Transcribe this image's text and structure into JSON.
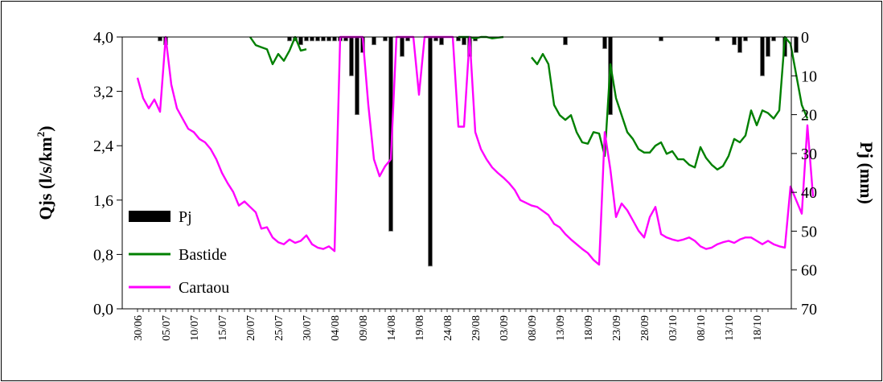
{
  "chart_data": {
    "type": "bar+line",
    "left_axis": {
      "label_main": "Qjs (l/s/km",
      "label_sup": "2",
      "label_end": ")",
      "ylim": [
        0,
        4
      ],
      "ticks": [
        "0,0",
        "0,8",
        "1,6",
        "2,4",
        "3,2",
        "4,0"
      ],
      "tick_values": [
        0,
        0.8,
        1.6,
        2.4,
        3.2,
        4.0
      ]
    },
    "right_axis": {
      "label": "Pj (mm)",
      "ylim": [
        0,
        70
      ],
      "inverted": true,
      "ticks": [
        "0",
        "10",
        "20",
        "30",
        "40",
        "50",
        "60",
        "70"
      ],
      "tick_values": [
        0,
        10,
        20,
        30,
        40,
        50,
        60,
        70
      ]
    },
    "x_axis": {
      "days": 112,
      "tick_labels": [
        "30/06",
        "05/07",
        "10/07",
        "15/07",
        "20/07",
        "25/07",
        "30/07",
        "04/08",
        "09/08",
        "14/08",
        "19/08",
        "24/08",
        "29/08",
        "03/09",
        "08/09",
        "13/09",
        "18/09",
        "23/09",
        "28/09",
        "03/10",
        "08/10",
        "13/10",
        "18/10"
      ]
    },
    "legend": {
      "position": "left-bottom"
    },
    "series": [
      {
        "name": "Pj",
        "type": "bar",
        "axis": "right",
        "color": "#000000",
        "points": [
          [
            4,
            1
          ],
          [
            5,
            2
          ],
          [
            27,
            1
          ],
          [
            28,
            1
          ],
          [
            29,
            2
          ],
          [
            30,
            1
          ],
          [
            31,
            1
          ],
          [
            32,
            1
          ],
          [
            33,
            1
          ],
          [
            34,
            1
          ],
          [
            35,
            1
          ],
          [
            36,
            1
          ],
          [
            37,
            1
          ],
          [
            38,
            10
          ],
          [
            39,
            20
          ],
          [
            40,
            4
          ],
          [
            42,
            2
          ],
          [
            44,
            1
          ],
          [
            45,
            50
          ],
          [
            47,
            5
          ],
          [
            48,
            1
          ],
          [
            52,
            59
          ],
          [
            53,
            1
          ],
          [
            54,
            2
          ],
          [
            57,
            1
          ],
          [
            58,
            2
          ],
          [
            59,
            5
          ],
          [
            60,
            1
          ],
          [
            76,
            2
          ],
          [
            83,
            3
          ],
          [
            84,
            20
          ],
          [
            93,
            1
          ],
          [
            103,
            1
          ],
          [
            106,
            2
          ],
          [
            107,
            4
          ],
          [
            108,
            1
          ],
          [
            111,
            10
          ],
          [
            112,
            5
          ],
          [
            113,
            1
          ],
          [
            115,
            5
          ],
          [
            117,
            4
          ]
        ]
      },
      {
        "name": "Bastide",
        "type": "line",
        "axis": "left",
        "color": "#008000",
        "points": [
          [
            20,
            4.0
          ],
          [
            21,
            3.88
          ],
          [
            22,
            3.85
          ],
          [
            23,
            3.82
          ],
          [
            24,
            3.6
          ],
          [
            25,
            3.75
          ],
          [
            26,
            3.65
          ],
          [
            27,
            3.8
          ],
          [
            28,
            4.0
          ],
          [
            29,
            3.8
          ],
          [
            30,
            3.82
          ],
          [
            37,
            4.0
          ],
          [
            48,
            4.0
          ],
          [
            55,
            4.0
          ],
          [
            57,
            4.0
          ],
          [
            58,
            4.05
          ],
          [
            59,
            4.0
          ],
          [
            60,
            3.98
          ],
          [
            61,
            4.02
          ],
          [
            62,
            4.0
          ],
          [
            63,
            3.98
          ],
          [
            64,
            3.99
          ],
          [
            65,
            4.0
          ],
          [
            68,
            4.0
          ],
          [
            70,
            3.7
          ],
          [
            71,
            3.6
          ],
          [
            72,
            3.75
          ],
          [
            73,
            3.6
          ],
          [
            74,
            3.0
          ],
          [
            75,
            2.85
          ],
          [
            76,
            2.78
          ],
          [
            77,
            2.85
          ],
          [
            78,
            2.6
          ],
          [
            79,
            2.45
          ],
          [
            80,
            2.43
          ],
          [
            81,
            2.6
          ],
          [
            82,
            2.58
          ],
          [
            83,
            2.25
          ],
          [
            84,
            3.6
          ],
          [
            85,
            3.1
          ],
          [
            86,
            2.85
          ],
          [
            87,
            2.6
          ],
          [
            88,
            2.5
          ],
          [
            89,
            2.35
          ],
          [
            90,
            2.3
          ],
          [
            91,
            2.3
          ],
          [
            92,
            2.4
          ],
          [
            93,
            2.45
          ],
          [
            94,
            2.28
          ],
          [
            95,
            2.32
          ],
          [
            96,
            2.2
          ],
          [
            97,
            2.2
          ],
          [
            98,
            2.12
          ],
          [
            99,
            2.08
          ],
          [
            100,
            2.38
          ],
          [
            101,
            2.22
          ],
          [
            102,
            2.12
          ],
          [
            103,
            2.05
          ],
          [
            104,
            2.1
          ],
          [
            105,
            2.25
          ],
          [
            106,
            2.5
          ],
          [
            107,
            2.45
          ],
          [
            108,
            2.55
          ],
          [
            109,
            2.92
          ],
          [
            110,
            2.7
          ],
          [
            111,
            2.92
          ],
          [
            112,
            2.88
          ],
          [
            113,
            2.8
          ],
          [
            114,
            2.92
          ],
          [
            115,
            4.0
          ],
          [
            116,
            3.9
          ],
          [
            117,
            3.45
          ],
          [
            118,
            3.0
          ],
          [
            119,
            2.8
          ]
        ]
      },
      {
        "name": "Cartaou",
        "type": "line",
        "axis": "left",
        "color": "#ff00ff",
        "points": [
          [
            0,
            3.4
          ],
          [
            1,
            3.1
          ],
          [
            2,
            2.95
          ],
          [
            3,
            3.08
          ],
          [
            4,
            2.9
          ],
          [
            5,
            4.0
          ],
          [
            6,
            3.3
          ],
          [
            7,
            2.95
          ],
          [
            8,
            2.8
          ],
          [
            9,
            2.65
          ],
          [
            10,
            2.6
          ],
          [
            11,
            2.5
          ],
          [
            12,
            2.45
          ],
          [
            13,
            2.35
          ],
          [
            14,
            2.2
          ],
          [
            15,
            2.0
          ],
          [
            16,
            1.85
          ],
          [
            17,
            1.72
          ],
          [
            18,
            1.52
          ],
          [
            19,
            1.58
          ],
          [
            20,
            1.5
          ],
          [
            21,
            1.42
          ],
          [
            22,
            1.18
          ],
          [
            23,
            1.2
          ],
          [
            24,
            1.05
          ],
          [
            25,
            0.98
          ],
          [
            26,
            0.95
          ],
          [
            27,
            1.02
          ],
          [
            28,
            0.97
          ],
          [
            29,
            1.0
          ],
          [
            30,
            1.08
          ],
          [
            31,
            0.95
          ],
          [
            32,
            0.9
          ],
          [
            33,
            0.88
          ],
          [
            34,
            0.92
          ],
          [
            35,
            0.85
          ],
          [
            36,
            4.0
          ],
          [
            37,
            4.0
          ],
          [
            38,
            4.0
          ],
          [
            39,
            4.0
          ],
          [
            40,
            4.0
          ],
          [
            41,
            3.0
          ],
          [
            42,
            2.2
          ],
          [
            43,
            1.95
          ],
          [
            44,
            2.1
          ],
          [
            45,
            2.2
          ],
          [
            46,
            4.0
          ],
          [
            47,
            4.0
          ],
          [
            48,
            4.0
          ],
          [
            49,
            4.0
          ],
          [
            50,
            3.15
          ],
          [
            51,
            4.0
          ],
          [
            52,
            4.0
          ],
          [
            53,
            4.0
          ],
          [
            54,
            4.0
          ],
          [
            55,
            4.0
          ],
          [
            56,
            4.0
          ],
          [
            57,
            2.68
          ],
          [
            58,
            2.68
          ],
          [
            59,
            4.0
          ],
          [
            60,
            2.6
          ],
          [
            61,
            2.35
          ],
          [
            62,
            2.2
          ],
          [
            63,
            2.08
          ],
          [
            64,
            2.0
          ],
          [
            65,
            1.93
          ],
          [
            66,
            1.85
          ],
          [
            67,
            1.75
          ],
          [
            68,
            1.6
          ],
          [
            69,
            1.56
          ],
          [
            70,
            1.52
          ],
          [
            71,
            1.5
          ],
          [
            72,
            1.44
          ],
          [
            73,
            1.38
          ],
          [
            74,
            1.25
          ],
          [
            75,
            1.2
          ],
          [
            76,
            1.1
          ],
          [
            77,
            1.02
          ],
          [
            78,
            0.95
          ],
          [
            79,
            0.88
          ],
          [
            80,
            0.82
          ],
          [
            81,
            0.72
          ],
          [
            82,
            0.65
          ],
          [
            83,
            2.6
          ],
          [
            84,
            2.05
          ],
          [
            85,
            1.35
          ],
          [
            86,
            1.55
          ],
          [
            87,
            1.45
          ],
          [
            88,
            1.3
          ],
          [
            89,
            1.15
          ],
          [
            90,
            1.05
          ],
          [
            91,
            1.35
          ],
          [
            92,
            1.5
          ],
          [
            93,
            1.1
          ],
          [
            94,
            1.05
          ],
          [
            95,
            1.02
          ],
          [
            96,
            1.0
          ],
          [
            97,
            1.02
          ],
          [
            98,
            1.05
          ],
          [
            99,
            1.0
          ],
          [
            100,
            0.92
          ],
          [
            101,
            0.88
          ],
          [
            102,
            0.9
          ],
          [
            103,
            0.95
          ],
          [
            104,
            0.98
          ],
          [
            105,
            1.0
          ],
          [
            106,
            0.97
          ],
          [
            107,
            1.02
          ],
          [
            108,
            1.05
          ],
          [
            109,
            1.05
          ],
          [
            110,
            1.0
          ],
          [
            111,
            0.95
          ],
          [
            112,
            1.0
          ],
          [
            113,
            0.95
          ],
          [
            114,
            0.92
          ],
          [
            115,
            0.9
          ],
          [
            116,
            1.8
          ],
          [
            117,
            1.6
          ],
          [
            118,
            1.4
          ],
          [
            119,
            2.7
          ],
          [
            120,
            1.65
          ]
        ]
      }
    ]
  }
}
